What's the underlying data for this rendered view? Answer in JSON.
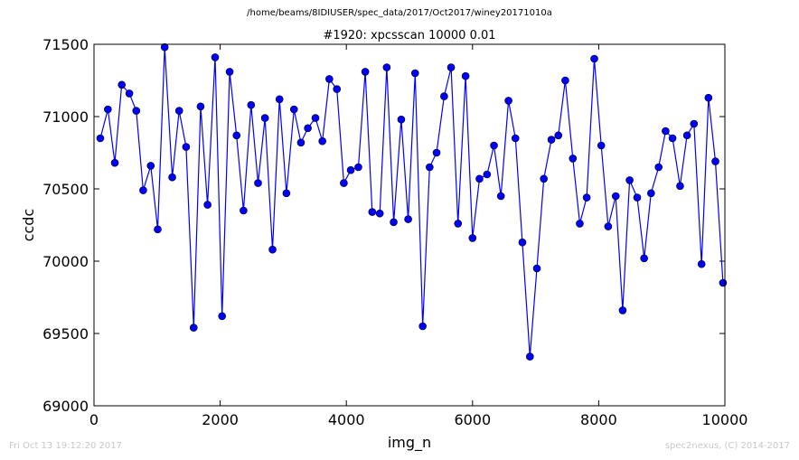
{
  "figure": {
    "suptitle": "/home/beams/8IDIUSER/spec_data/2017/Oct2017/winey20171010a",
    "footer_left": "Fri Oct 13 19:12:20 2017",
    "footer_right": "spec2nexus, (C) 2014-2017"
  },
  "chart_data": {
    "type": "line",
    "title": "#1920: xpcsscan 10000 0.01",
    "xlabel": "img_n",
    "ylabel": "ccdc",
    "xlim": [
      0,
      10000
    ],
    "ylim": [
      69000,
      71500
    ],
    "xticks": [
      0,
      2000,
      4000,
      6000,
      8000,
      10000
    ],
    "yticks": [
      69000,
      69500,
      70000,
      70500,
      71000,
      71500
    ],
    "grid": false,
    "line_color": "#0000ff",
    "marker": "circle",
    "x": [
      100,
      220,
      330,
      440,
      560,
      670,
      780,
      900,
      1010,
      1120,
      1240,
      1350,
      1460,
      1580,
      1690,
      1800,
      1920,
      2030,
      2150,
      2260,
      2370,
      2490,
      2600,
      2710,
      2830,
      2940,
      3050,
      3170,
      3280,
      3390,
      3510,
      3620,
      3730,
      3850,
      3960,
      4070,
      4190,
      4300,
      4410,
      4530,
      4640,
      4750,
      4870,
      4980,
      5090,
      5210,
      5320,
      5430,
      5550,
      5660,
      5770,
      5890,
      6000,
      6110,
      6230,
      6340,
      6450,
      6570,
      6680,
      6790,
      6910,
      7020,
      7130,
      7250,
      7360,
      7470,
      7590,
      7700,
      7810,
      7930,
      8040,
      8150,
      8270,
      8380,
      8490,
      8610,
      8720,
      8830,
      8950,
      9060,
      9170,
      9290,
      9400,
      9510,
      9630,
      9740,
      9850,
      9970
    ],
    "y": [
      70850,
      71050,
      70680,
      71220,
      71160,
      71040,
      70490,
      70660,
      70220,
      71480,
      70580,
      71040,
      70790,
      69540,
      71070,
      70390,
      71410,
      69620,
      71310,
      70870,
      70350,
      71080,
      70540,
      70990,
      70080,
      71120,
      70470,
      71050,
      70820,
      70920,
      70990,
      70830,
      71260,
      71190,
      70540,
      70630,
      70650,
      71310,
      70340,
      70330,
      71340,
      70270,
      70980,
      70290,
      71300,
      69550,
      70650,
      70750,
      71140,
      71340,
      70260,
      71280,
      70160,
      70570,
      70600,
      70800,
      70450,
      71110,
      70850,
      70130,
      69340,
      69950,
      70570,
      70840,
      70870,
      71250,
      70710,
      70260,
      70440,
      71400,
      70800,
      70240,
      70450,
      69660,
      70560,
      70440,
      70020,
      70470,
      70650,
      70900,
      70850,
      70520,
      70870,
      70950,
      69980,
      71130,
      70690,
      69850
    ]
  }
}
